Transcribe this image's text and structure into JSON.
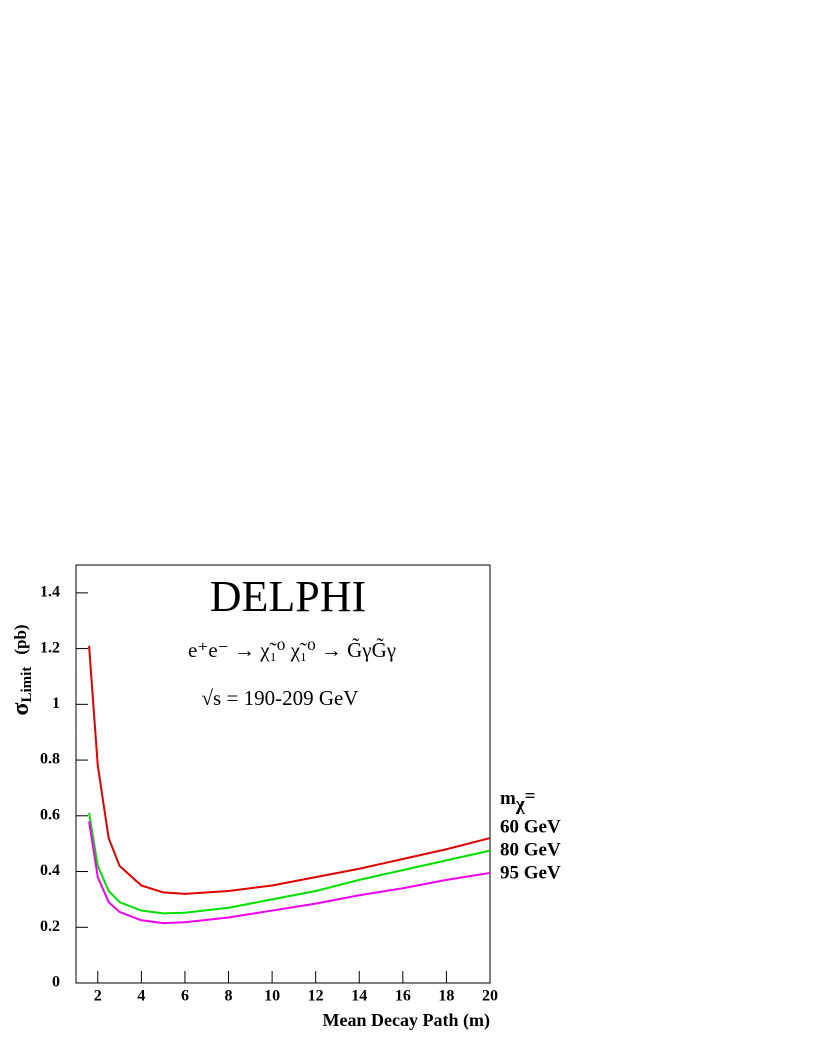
{
  "chart_data": {
    "type": "line",
    "title": "DELPHI",
    "process": "e⁺e⁻ → χ̃₁⁰ χ̃₁⁰ → G̃γG̃γ",
    "energy": "√s = 190-209 GeV",
    "ylabel": {
      "symbol": "σ",
      "subscript": "Limit",
      "unit": "(pb)"
    },
    "xlabel": "Mean Decay Path (m)",
    "legend_title": {
      "symbol": "m",
      "subscript": "χ",
      "suffix": "="
    },
    "x": [
      1.6,
      2,
      2.5,
      3,
      4,
      5,
      6,
      8,
      10,
      12,
      14,
      16,
      18,
      20
    ],
    "series": [
      {
        "name": "60 GeV",
        "color": "#e00000",
        "values": [
          1.21,
          0.78,
          0.52,
          0.42,
          0.35,
          0.325,
          0.32,
          0.33,
          0.35,
          0.38,
          0.41,
          0.445,
          0.48,
          0.52
        ]
      },
      {
        "name": "80 GeV",
        "color": "#00e000",
        "values": [
          0.61,
          0.42,
          0.33,
          0.29,
          0.26,
          0.25,
          0.252,
          0.27,
          0.3,
          0.33,
          0.37,
          0.405,
          0.44,
          0.475
        ]
      },
      {
        "name": "95 GeV",
        "color": "#ee00ee",
        "values": [
          0.58,
          0.38,
          0.29,
          0.255,
          0.225,
          0.215,
          0.218,
          0.235,
          0.26,
          0.285,
          0.315,
          0.34,
          0.37,
          0.395
        ]
      }
    ],
    "xlim": [
      1,
      20
    ],
    "ylim": [
      0,
      1.5
    ],
    "xticks": [
      2,
      4,
      6,
      8,
      10,
      12,
      14,
      16,
      18,
      20
    ],
    "yticks": [
      0,
      0.2,
      0.4,
      0.6,
      0.8,
      1,
      1.2,
      1.4
    ],
    "grid": false
  }
}
